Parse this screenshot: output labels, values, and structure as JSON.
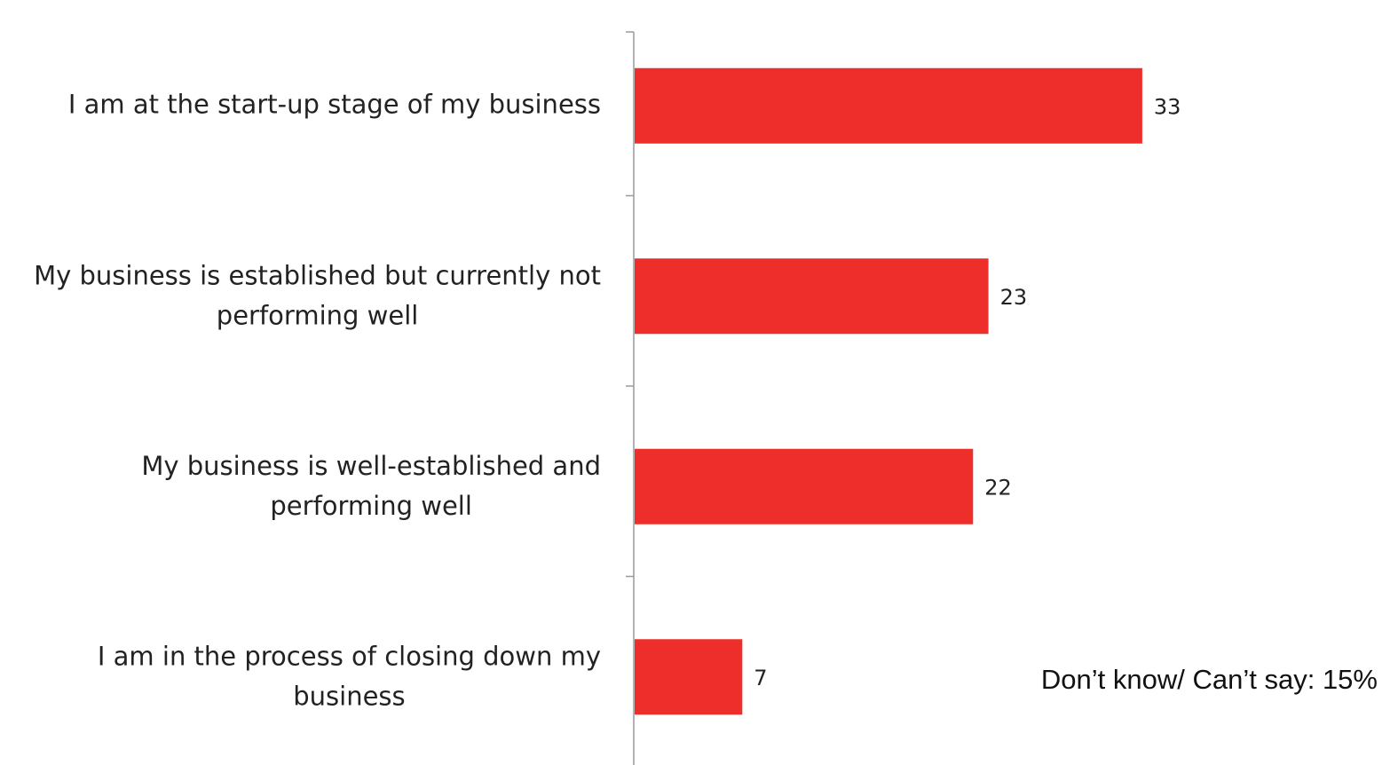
{
  "chart_data": {
    "type": "bar",
    "orientation": "horizontal",
    "categories": [
      [
        "I am at the start-up stage of my business"
      ],
      [
        "My business is established but currently not",
        "performing well"
      ],
      [
        "My business is well-established and",
        "performing well"
      ],
      [
        "I am in the process of closing down my",
        "business"
      ]
    ],
    "values": [
      33,
      23,
      22,
      7
    ],
    "data_labels": [
      "33",
      "23",
      "22",
      "7"
    ],
    "bar_color": "#EE2E2A",
    "axis_color": "#9a9a9a",
    "grid": false,
    "legend": "none"
  },
  "note": {
    "text": "Don’t know/ Can’t say: 15%"
  }
}
